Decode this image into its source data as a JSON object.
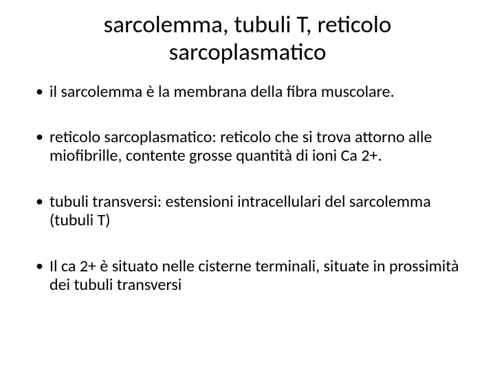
{
  "slide": {
    "title": "sarcolemma, tubuli T, reticolo sarcoplasmatico",
    "bullets": [
      "il sarcolemma è la membrana della fibra muscolare.",
      "reticolo sarcoplasmatico: reticolo che si trova attorno alle miofibrille, contente grosse quantità di ioni Ca 2+.",
      "tubuli transversi: estensioni intracellulari del sarcolemma (tubuli T)",
      "Il ca 2+ è situato nelle cisterne terminali, situate in prossimità dei tubuli transversi"
    ],
    "title_fontsize": 35,
    "body_fontsize": 24,
    "text_color": "#000000",
    "background_color": "#ffffff",
    "font_family": "Calibri"
  }
}
